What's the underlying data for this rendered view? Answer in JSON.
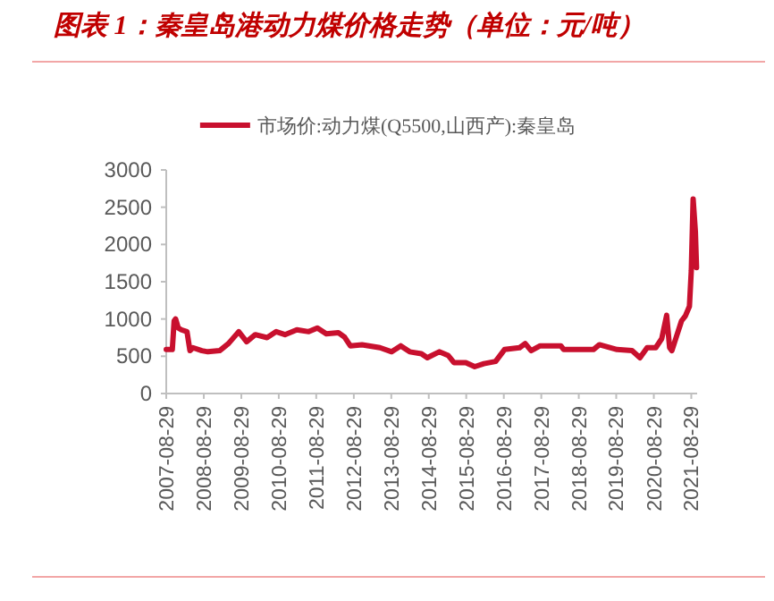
{
  "chart_data": {
    "type": "line",
    "title": "图表 1：秦皇岛港动力煤价格走势（单位：元/吨）",
    "x": [
      "2007-08-29",
      "2007-10-27",
      "2007-11-14",
      "2007-11-28",
      "2007-12-24",
      "2008-01-23",
      "2008-03-18",
      "2008-04-16",
      "2008-05-15",
      "2008-08-10",
      "2008-10-08",
      "2009-01-30",
      "2009-04-26",
      "2009-08-04",
      "2009-10-20",
      "2010-01-12",
      "2010-05-07",
      "2010-08-04",
      "2010-10-28",
      "2011-02-21",
      "2011-06-17",
      "2011-09-09",
      "2011-12-05",
      "2012-04-01",
      "2012-05-29",
      "2012-07-26",
      "2012-11-17",
      "2013-05-11",
      "2013-09-02",
      "2013-11-29",
      "2014-02-24",
      "2014-06-18",
      "2014-08-15",
      "2014-12-09",
      "2015-03-07",
      "2015-05-01",
      "2015-08-25",
      "2015-11-20",
      "2016-02-17",
      "2016-06-10",
      "2016-09-05",
      "2017-01-30",
      "2017-03-25",
      "2017-05-22",
      "2017-08-18",
      "2018-03-07",
      "2018-04-05",
      "2019-01-19",
      "2019-03-18",
      "2019-09-06",
      "2020-01-30",
      "2020-04-16",
      "2020-06-25",
      "2020-09-17",
      "2020-11-14",
      "2021-01-01",
      "2021-01-30",
      "2021-02-21",
      "2021-04-09",
      "2021-05-26",
      "2021-07-02",
      "2021-08-11",
      "2021-08-29",
      "2021-09-16",
      "2021-10-08",
      "2021-10-19"
    ],
    "series": [
      {
        "name": "市场价:动力煤(Q5500,山西产):秦皇岛",
        "color": "#c8102e",
        "values": [
          590,
          590,
          975,
          1000,
          880,
          855,
          830,
          575,
          615,
          575,
          560,
          575,
          670,
          830,
          695,
          790,
          750,
          830,
          790,
          855,
          830,
          880,
          800,
          815,
          760,
          640,
          655,
          615,
          560,
          640,
          560,
          535,
          480,
          560,
          510,
          415,
          415,
          360,
          400,
          430,
          590,
          615,
          670,
          575,
          640,
          640,
          590,
          590,
          655,
          590,
          575,
          480,
          615,
          615,
          735,
          1050,
          615,
          575,
          775,
          975,
          1040,
          1170,
          1650,
          2610,
          2170,
          1690
        ]
      }
    ],
    "xlim": [
      "2007-08-29",
      "2021-10-25"
    ],
    "xticks": [
      "2007-08-29",
      "2008-08-29",
      "2009-08-29",
      "2010-08-29",
      "2011-08-29",
      "2012-08-29",
      "2013-08-29",
      "2014-08-29",
      "2015-08-29",
      "2016-08-29",
      "2017-08-29",
      "2018-08-29",
      "2019-08-29",
      "2020-08-29",
      "2021-08-29"
    ],
    "ylim": [
      0,
      3000
    ],
    "yticks": [
      0,
      500,
      1000,
      1500,
      2000,
      2500,
      3000
    ],
    "grid": false,
    "legend": "top",
    "marker": "none",
    "line_style": "solid"
  }
}
